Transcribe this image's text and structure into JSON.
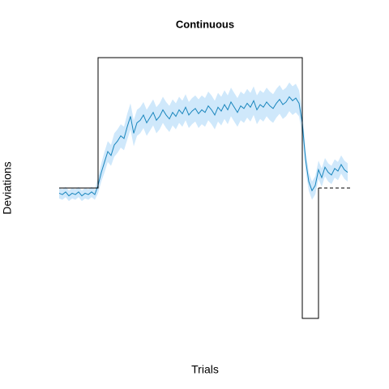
{
  "chart_data": {
    "type": "line",
    "title": "Continuous",
    "xlabel": "Trials",
    "ylabel": "Deviations",
    "xlim": [
      0,
      180
    ],
    "ylim": [
      -1.2,
      1.2
    ],
    "x": [
      0,
      2,
      4,
      6,
      8,
      10,
      12,
      14,
      16,
      18,
      20,
      22,
      24,
      26,
      28,
      30,
      32,
      34,
      36,
      38,
      40,
      42,
      44,
      46,
      48,
      50,
      52,
      54,
      56,
      58,
      60,
      62,
      64,
      66,
      68,
      70,
      72,
      74,
      76,
      78,
      80,
      82,
      84,
      86,
      88,
      90,
      92,
      94,
      96,
      98,
      100,
      102,
      104,
      106,
      108,
      110,
      112,
      114,
      116,
      118,
      120,
      122,
      124,
      126,
      128,
      130,
      132,
      134,
      136,
      138,
      140,
      142,
      144,
      146,
      148,
      150,
      152,
      154,
      156,
      158,
      160,
      162,
      164,
      166,
      168,
      170,
      172,
      174,
      176,
      178
    ],
    "series": [
      {
        "color": "#1a86bd",
        "band_color": "#cfe8fb",
        "values": [
          -0.04,
          -0.05,
          -0.03,
          -0.06,
          -0.04,
          -0.05,
          -0.03,
          -0.06,
          -0.04,
          -0.05,
          -0.03,
          -0.05,
          0.02,
          0.12,
          0.2,
          0.28,
          0.25,
          0.33,
          0.36,
          0.4,
          0.38,
          0.47,
          0.55,
          0.42,
          0.5,
          0.52,
          0.56,
          0.5,
          0.54,
          0.58,
          0.52,
          0.55,
          0.6,
          0.56,
          0.53,
          0.58,
          0.55,
          0.6,
          0.57,
          0.62,
          0.56,
          0.59,
          0.61,
          0.57,
          0.6,
          0.58,
          0.63,
          0.6,
          0.56,
          0.62,
          0.59,
          0.64,
          0.6,
          0.66,
          0.62,
          0.58,
          0.63,
          0.61,
          0.65,
          0.62,
          0.67,
          0.6,
          0.64,
          0.62,
          0.66,
          0.63,
          0.61,
          0.65,
          0.68,
          0.64,
          0.66,
          0.7,
          0.67,
          0.69,
          0.65,
          0.5,
          0.22,
          0.05,
          -0.02,
          0.02,
          0.14,
          0.08,
          0.16,
          0.12,
          0.1,
          0.15,
          0.13,
          0.18,
          0.14,
          0.12
        ],
        "errors": [
          0.04,
          0.04,
          0.04,
          0.04,
          0.04,
          0.04,
          0.04,
          0.04,
          0.04,
          0.04,
          0.04,
          0.04,
          0.06,
          0.07,
          0.08,
          0.08,
          0.08,
          0.09,
          0.09,
          0.09,
          0.09,
          0.1,
          0.1,
          0.1,
          0.1,
          0.1,
          0.1,
          0.1,
          0.1,
          0.1,
          0.1,
          0.1,
          0.1,
          0.1,
          0.1,
          0.1,
          0.1,
          0.1,
          0.1,
          0.1,
          0.1,
          0.1,
          0.1,
          0.11,
          0.11,
          0.11,
          0.11,
          0.11,
          0.11,
          0.11,
          0.11,
          0.11,
          0.11,
          0.11,
          0.11,
          0.11,
          0.11,
          0.11,
          0.11,
          0.11,
          0.11,
          0.11,
          0.11,
          0.11,
          0.11,
          0.11,
          0.11,
          0.11,
          0.11,
          0.11,
          0.11,
          0.11,
          0.11,
          0.11,
          0.1,
          0.09,
          0.08,
          0.07,
          0.07,
          0.07,
          0.07,
          0.07,
          0.07,
          0.07,
          0.07,
          0.07,
          0.07,
          0.07,
          0.07,
          0.07
        ]
      }
    ],
    "schedule": {
      "color": "#000000",
      "x": [
        0,
        24,
        24,
        150,
        150,
        160,
        160
      ],
      "values": [
        0,
        0,
        1,
        1,
        -1,
        -1,
        0
      ]
    },
    "clamp": {
      "color": "#000000",
      "dashed": true,
      "x": [
        160,
        180
      ],
      "values": [
        0,
        0
      ]
    }
  }
}
